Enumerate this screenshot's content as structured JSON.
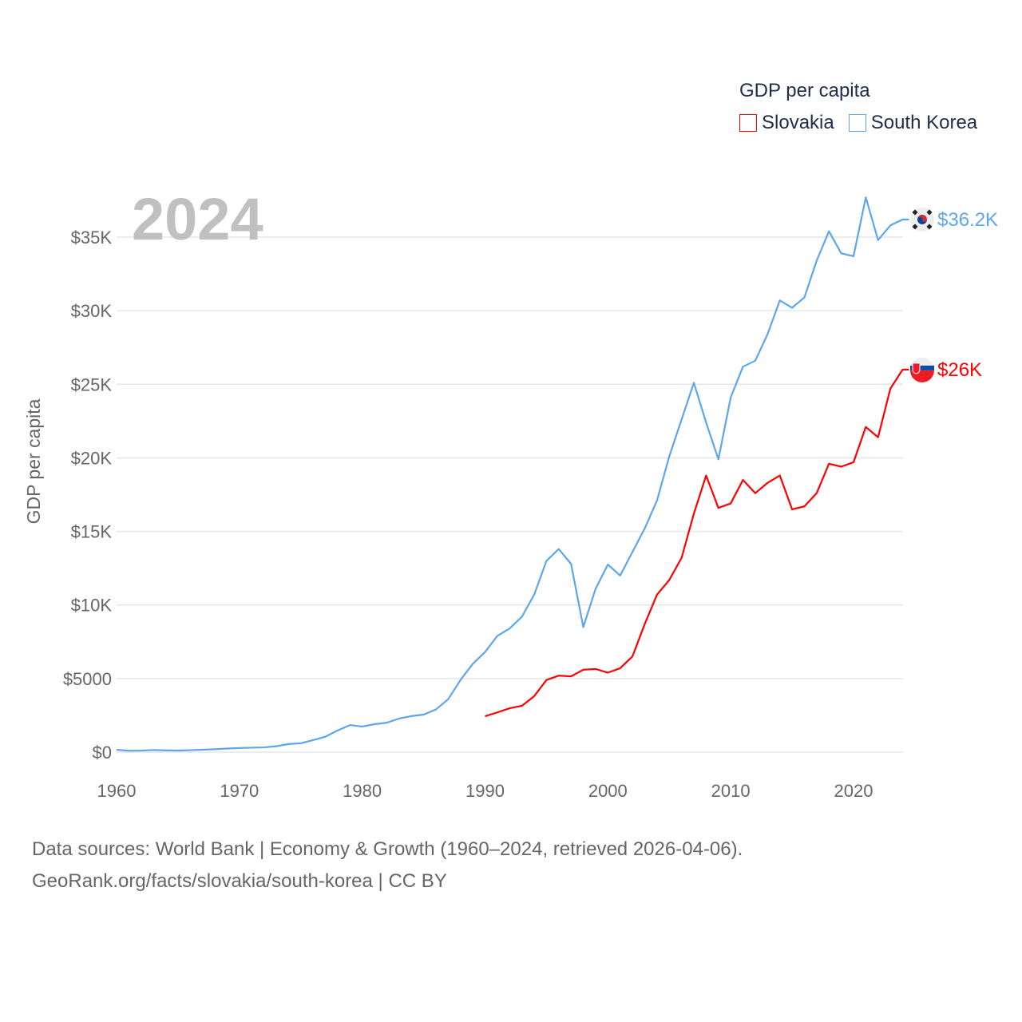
{
  "chart_data": {
    "type": "line",
    "title": "GDP per capita",
    "year_label": "2024",
    "xlabel": "",
    "ylabel": "GDP per capita",
    "xlim": [
      1960,
      2024
    ],
    "ylim": [
      0,
      37500
    ],
    "x_ticks": [
      1960,
      1970,
      1980,
      1990,
      2000,
      2010,
      2020
    ],
    "y_ticks": [
      {
        "value": 0,
        "label": "$0"
      },
      {
        "value": 5000,
        "label": "$5000"
      },
      {
        "value": 10000,
        "label": "$10K"
      },
      {
        "value": 15000,
        "label": "$15K"
      },
      {
        "value": 20000,
        "label": "$20K"
      },
      {
        "value": 25000,
        "label": "$25K"
      },
      {
        "value": 30000,
        "label": "$30K"
      },
      {
        "value": 35000,
        "label": "$35K"
      }
    ],
    "grid": true,
    "legend_placement": "top-right",
    "series": [
      {
        "name": "Slovakia",
        "color": "#ff0000",
        "end_label": "$26K",
        "flag": "slovakia-flag",
        "start_year": 1990,
        "values": [
          2440,
          2700,
          2980,
          3150,
          3800,
          4900,
          5200,
          5150,
          5600,
          5650,
          5400,
          5700,
          6500,
          8700,
          10700,
          11700,
          13200,
          16200,
          18800,
          16600,
          16900,
          18500,
          17600,
          18300,
          18800,
          16500,
          16700,
          17600,
          19600,
          19400,
          19700,
          22100,
          21400,
          24700,
          26000
        ]
      },
      {
        "name": "South Korea",
        "color": "#5ea6ec",
        "end_label": "$36.2K",
        "flag": "south-korea-flag",
        "start_year": 1960,
        "values": [
          158,
          94,
          106,
          146,
          124,
          108,
          133,
          161,
          198,
          243,
          279,
          301,
          323,
          400,
          550,
          600,
          820,
          1050,
          1470,
          1840,
          1740,
          1900,
          2000,
          2280,
          2450,
          2550,
          2900,
          3600,
          4900,
          6000,
          6800,
          7900,
          8400,
          9200,
          10700,
          13000,
          13800,
          12800,
          8500,
          11100,
          12750,
          12000,
          13600,
          15200,
          17100,
          20100,
          22600,
          25100,
          22400,
          19900,
          24100,
          26200,
          26600,
          28400,
          30700,
          30200,
          30900,
          33400,
          35400,
          33900,
          33700,
          37700,
          34800,
          35800,
          36200
        ]
      }
    ]
  },
  "legend": {
    "title": "GDP per capita",
    "items": [
      "Slovakia",
      "South Korea"
    ]
  },
  "footer": {
    "line1": "Data sources: World Bank | Economy & Growth (1960–2024, retrieved 2026-04-06).",
    "line2": "GeoRank.org/facts/slovakia/south-korea | CC BY"
  }
}
